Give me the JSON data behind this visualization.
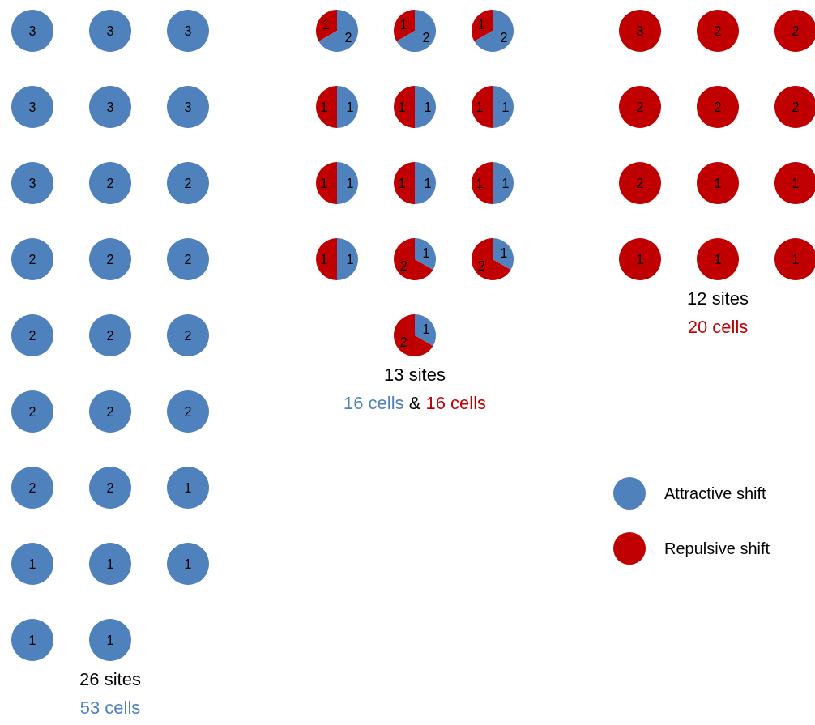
{
  "chart_data": {
    "type": "pie",
    "categories": [
      "Attractive shift",
      "Repulsive shift"
    ],
    "colors": [
      "#4f81bd",
      "#c00000"
    ],
    "data_labels": true,
    "legend": "bottom right",
    "annotations": [
      "26 sites",
      "53 cells",
      "13 sites",
      "16 cells",
      "&",
      "16 cells",
      "12 sites",
      "20 cells"
    ],
    "series": [
      {
        "values": [
          3,
          0
        ]
      },
      {
        "values": [
          3,
          0
        ]
      },
      {
        "values": [
          3,
          0
        ]
      },
      {
        "values": [
          2,
          1
        ]
      },
      {
        "values": [
          2,
          1
        ]
      },
      {
        "values": [
          2,
          1
        ]
      },
      {
        "values": [
          0,
          3
        ]
      },
      {
        "values": [
          0,
          2
        ]
      },
      {
        "values": [
          0,
          2
        ]
      },
      {
        "values": [
          3,
          0
        ]
      },
      {
        "values": [
          3,
          0
        ]
      },
      {
        "values": [
          3,
          0
        ]
      },
      {
        "values": [
          1,
          1
        ]
      },
      {
        "values": [
          1,
          1
        ]
      },
      {
        "values": [
          1,
          1
        ]
      },
      {
        "values": [
          0,
          2
        ]
      },
      {
        "values": [
          0,
          2
        ]
      },
      {
        "values": [
          0,
          2
        ]
      },
      {
        "values": [
          3,
          0
        ]
      },
      {
        "values": [
          2,
          0
        ]
      },
      {
        "values": [
          2,
          0
        ]
      },
      {
        "values": [
          1,
          1
        ]
      },
      {
        "values": [
          1,
          1
        ]
      },
      {
        "values": [
          1,
          1
        ]
      },
      {
        "values": [
          0,
          2
        ]
      },
      {
        "values": [
          0,
          1
        ]
      },
      {
        "values": [
          0,
          1
        ]
      },
      {
        "values": [
          2,
          0
        ]
      },
      {
        "values": [
          2,
          0
        ]
      },
      {
        "values": [
          2,
          0
        ]
      },
      {
        "values": [
          1,
          1
        ]
      },
      {
        "values": [
          1,
          2
        ]
      },
      {
        "values": [
          1,
          2
        ]
      },
      {
        "values": [
          0,
          1
        ]
      },
      {
        "values": [
          0,
          1
        ]
      },
      {
        "values": [
          0,
          1
        ]
      },
      {
        "values": [
          2,
          0
        ]
      },
      {
        "values": [
          2,
          0
        ]
      },
      {
        "values": [
          2,
          0
        ]
      },
      {
        "values": [
          1,
          2
        ]
      },
      {
        "values": [
          2,
          0
        ]
      },
      {
        "values": [
          2,
          0
        ]
      },
      {
        "values": [
          2,
          0
        ]
      },
      {
        "values": [
          2,
          0
        ]
      },
      {
        "values": [
          2,
          0
        ]
      },
      {
        "values": [
          1,
          0
        ]
      },
      {
        "values": [
          1,
          0
        ]
      },
      {
        "values": [
          1,
          0
        ]
      },
      {
        "values": [
          1,
          0
        ]
      },
      {
        "values": [
          1,
          0
        ]
      },
      {
        "values": [
          1,
          0
        ]
      }
    ]
  }
}
